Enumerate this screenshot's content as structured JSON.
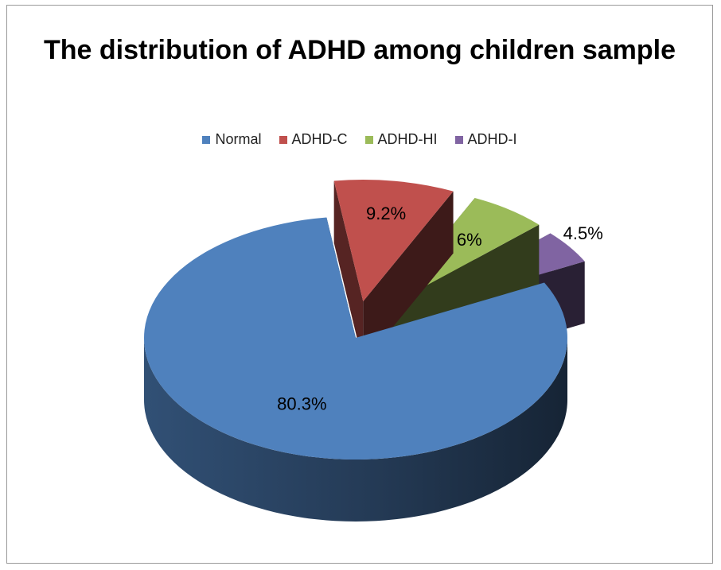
{
  "chart_data": {
    "type": "pie",
    "title": "The distribution of ADHD among children sample",
    "categories": [
      "Normal",
      "ADHD-C",
      "ADHD-HI",
      "ADHD-I"
    ],
    "values": [
      80.3,
      9.2,
      6,
      4.5
    ],
    "data_labels": [
      "80.3%",
      "9.2%",
      "6%",
      "4.5%"
    ],
    "colors": [
      "#4F81BD",
      "#C0504D",
      "#9BBB59",
      "#8064A2"
    ],
    "exploded": [
      false,
      true,
      true,
      true
    ],
    "legend_position": "top",
    "style": "3d-exploded"
  }
}
